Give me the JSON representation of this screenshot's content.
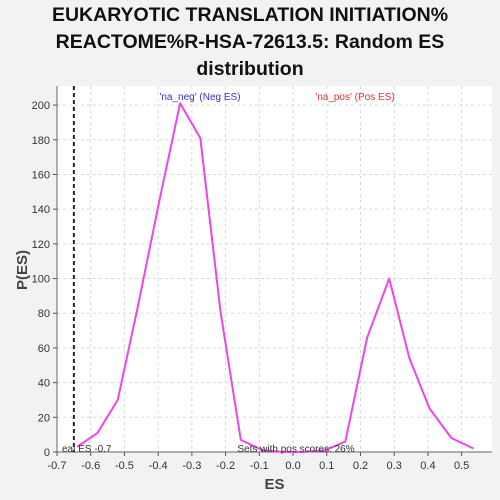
{
  "title_lines": [
    "EUKARYOTIC TRANSLATION INITIATION%",
    "REACTOME%R-HSA-72613.5: Random ES",
    "distribution"
  ],
  "colors": {
    "curve": "#ee44ee",
    "neg_label": "#3333cc",
    "pos_label": "#dd3333",
    "plot_bg": "#ffffff",
    "grid": "#d8d8d8",
    "marker": "#222222"
  },
  "chart_data": {
    "type": "line",
    "title": "EUKARYOTIC TRANSLATION INITIATION% REACTOME%R-HSA-72613.5: Random ES distribution",
    "xlabel": "ES",
    "ylabel": "P(ES)",
    "xlim": [
      -0.7,
      0.59
    ],
    "ylim": [
      0,
      211
    ],
    "grid": true,
    "xticks": [
      "-0.7",
      "-0.6",
      "-0.5",
      "-0.4",
      "-0.3",
      "-0.2",
      "-0.1",
      "0.0",
      "0.1",
      "0.2",
      "0.3",
      "0.4",
      "0.5"
    ],
    "yticks": [
      "0",
      "20",
      "40",
      "60",
      "80",
      "100",
      "120",
      "140",
      "160",
      "180",
      "200"
    ],
    "series": [
      {
        "x": [
          -0.64,
          -0.58,
          -0.52,
          -0.46,
          -0.395,
          -0.335,
          -0.275,
          -0.215,
          -0.155,
          -0.09,
          -0.03,
          0.03,
          0.095,
          0.155,
          0.22,
          0.285,
          0.345,
          0.405,
          0.47,
          0.535
        ],
        "values": [
          3,
          11,
          30,
          84,
          146,
          201,
          181,
          81,
          7,
          1,
          0,
          0,
          1,
          6,
          66,
          100,
          54,
          25,
          8,
          2
        ]
      }
    ],
    "vline_x": -0.65,
    "annotations": {
      "neg_label": "'na_neg' (Neg ES)",
      "pos_label": "'na_pos' (Pos ES)",
      "real_es_label": "eal ES -0.7",
      "pos_scores_label": "Sets with pos scores: 26%"
    }
  }
}
